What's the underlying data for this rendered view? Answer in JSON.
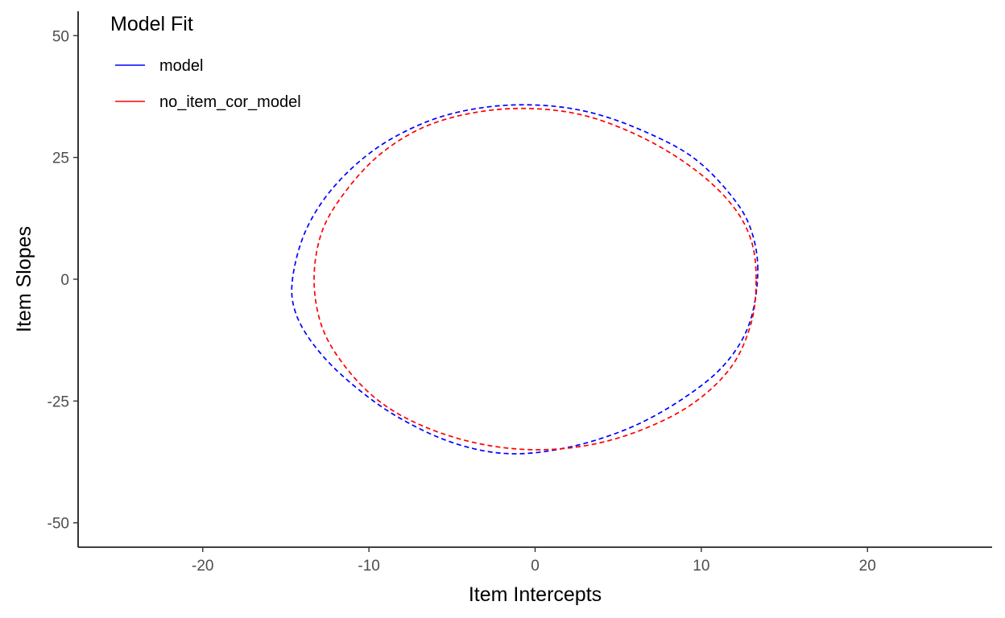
{
  "chart_data": {
    "type": "line",
    "xlabel": "Item Intercepts",
    "ylabel": "Item Slopes",
    "xlim": [
      -27.5,
      27.5
    ],
    "ylim": [
      -55,
      55
    ],
    "x_ticks": [
      -20,
      -10,
      0,
      10,
      20
    ],
    "y_ticks": [
      -50,
      -25,
      0,
      25,
      50
    ],
    "x_tick_labels": [
      "-20",
      "-10",
      "0",
      "10",
      "20"
    ],
    "y_tick_labels": [
      "-50",
      "-25",
      "0",
      "25",
      "50"
    ],
    "grid": false,
    "legend": {
      "title": "Model Fit",
      "placement": "top-left"
    },
    "series": [
      {
        "name": "model",
        "color": "#0000ff",
        "linestyle": "dashed",
        "points": [
          [
            13.4,
            2.0
          ],
          [
            12.9,
            11.0
          ],
          [
            11.6,
            18.0
          ],
          [
            9.5,
            25.0
          ],
          [
            6.8,
            30.0
          ],
          [
            3.6,
            34.0
          ],
          [
            0.4,
            35.7
          ],
          [
            -3.0,
            35.3
          ],
          [
            -6.3,
            32.6
          ],
          [
            -9.5,
            27.0
          ],
          [
            -12.1,
            19.0
          ],
          [
            -13.8,
            10.0
          ],
          [
            -14.6,
            0.0
          ],
          [
            -14.4,
            -7.0
          ],
          [
            -13.2,
            -14.0
          ],
          [
            -11.2,
            -21.0
          ],
          [
            -8.4,
            -28.0
          ],
          [
            -5.0,
            -33.5
          ],
          [
            -1.6,
            -35.8
          ],
          [
            2.0,
            -34.5
          ],
          [
            5.7,
            -30.5
          ],
          [
            8.9,
            -24.5
          ],
          [
            11.4,
            -17.5
          ],
          [
            12.9,
            -9.0
          ],
          [
            13.4,
            2.0
          ]
        ]
      },
      {
        "name": "no_item_cor_model",
        "color": "#ff0000",
        "linestyle": "dashed",
        "points": [
          [
            13.3,
            0.0
          ],
          [
            13.0,
            8.0
          ],
          [
            11.9,
            15.0
          ],
          [
            9.8,
            22.0
          ],
          [
            6.8,
            28.5
          ],
          [
            3.3,
            33.3
          ],
          [
            0.0,
            35.0
          ],
          [
            -3.3,
            34.4
          ],
          [
            -6.5,
            31.5
          ],
          [
            -9.2,
            26.0
          ],
          [
            -11.3,
            18.5
          ],
          [
            -12.8,
            10.0
          ],
          [
            -13.3,
            0.0
          ],
          [
            -12.8,
            -10.0
          ],
          [
            -11.3,
            -18.5
          ],
          [
            -9.2,
            -25.5
          ],
          [
            -6.5,
            -30.5
          ],
          [
            -3.3,
            -33.8
          ],
          [
            0.0,
            -35.0
          ],
          [
            3.3,
            -34.0
          ],
          [
            6.5,
            -30.8
          ],
          [
            9.5,
            -25.5
          ],
          [
            11.8,
            -18.0
          ],
          [
            13.0,
            -9.0
          ],
          [
            13.3,
            0.0
          ]
        ]
      }
    ]
  }
}
